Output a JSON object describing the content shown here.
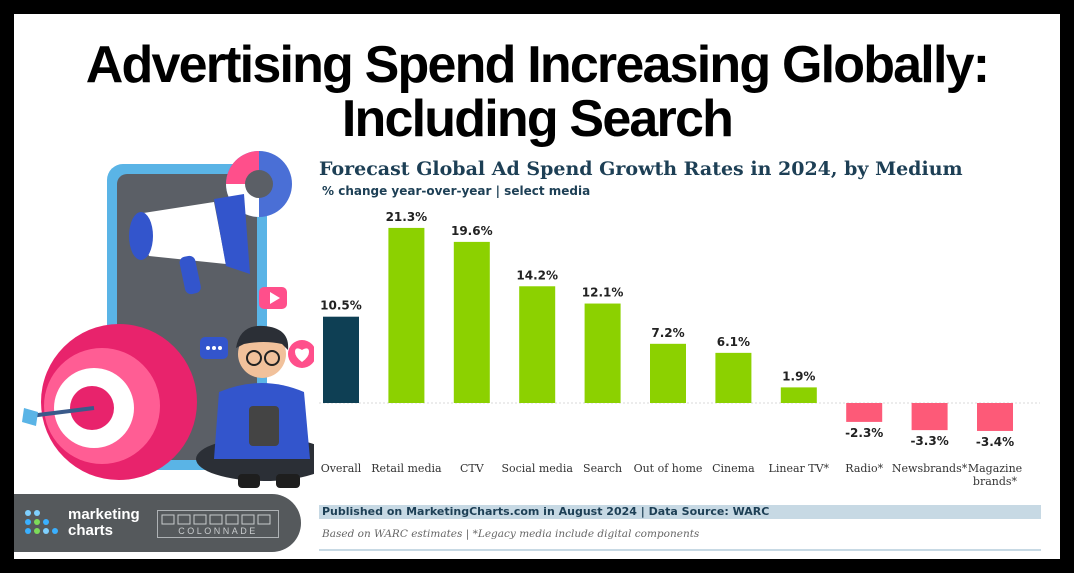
{
  "headline": {
    "line1": "Advertising Spend Increasing Globally:",
    "line2": "Including Search"
  },
  "chart_data": {
    "type": "bar",
    "title": "Forecast Global Ad Spend Growth Rates in 2024, by Medium",
    "subtitle": "% change year-over-year | select media",
    "categories": [
      "Overall",
      "Retail media",
      "CTV",
      "Social media",
      "Search",
      "Out of home",
      "Cinema",
      "Linear TV*",
      "Radio*",
      "Newsbrands*",
      "Magazine brands*"
    ],
    "category_lines": [
      [
        "Overall"
      ],
      [
        "Retail media"
      ],
      [
        "CTV"
      ],
      [
        "Social media"
      ],
      [
        "Search"
      ],
      [
        "Out of home"
      ],
      [
        "Cinema"
      ],
      [
        "Linear TV*"
      ],
      [
        "Radio*"
      ],
      [
        "Newsbrands*"
      ],
      [
        "Magazine",
        "brands*"
      ]
    ],
    "values": [
      10.5,
      21.3,
      19.6,
      14.2,
      12.1,
      7.2,
      6.1,
      1.9,
      -2.3,
      -3.3,
      -3.4
    ],
    "value_labels": [
      "10.5%",
      "21.3%",
      "19.6%",
      "14.2%",
      "12.1%",
      "7.2%",
      "6.1%",
      "1.9%",
      "-2.3%",
      "-3.3%",
      "-3.4%"
    ],
    "xlabel": "",
    "ylabel": "",
    "ylim": [
      -3.4,
      21.3
    ],
    "grid": false,
    "colors": {
      "overall": "#0e3f54",
      "positive": "#8cd100",
      "negative": "#fd5a78",
      "baseline": "#d9d9d9"
    }
  },
  "footer": {
    "source": "Published on MarketingCharts.com in August 2024 | Data Source: WARC",
    "note": "Based on WARC estimates | *Legacy media include digital components"
  },
  "branding": {
    "logo_line1": "marketing",
    "logo_line2": "charts",
    "partner": "COLONNADE"
  }
}
